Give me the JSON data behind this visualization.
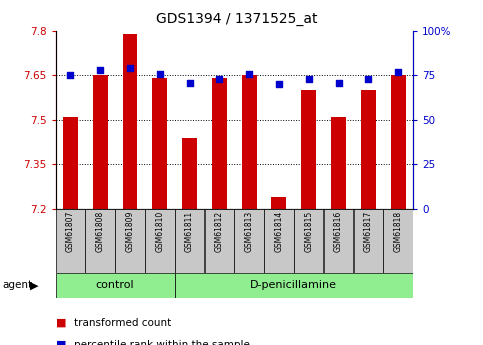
{
  "title": "GDS1394 / 1371525_at",
  "samples": [
    "GSM61807",
    "GSM61808",
    "GSM61809",
    "GSM61810",
    "GSM61811",
    "GSM61812",
    "GSM61813",
    "GSM61814",
    "GSM61815",
    "GSM61816",
    "GSM61817",
    "GSM61818"
  ],
  "transformed_counts": [
    7.51,
    7.65,
    7.79,
    7.64,
    7.44,
    7.64,
    7.65,
    7.24,
    7.6,
    7.51,
    7.6,
    7.65
  ],
  "percentile_ranks": [
    75,
    78,
    79,
    76,
    71,
    73,
    76,
    70,
    73,
    71,
    73,
    77
  ],
  "control_indices": [
    0,
    1,
    2,
    3
  ],
  "treatment_indices": [
    4,
    5,
    6,
    7,
    8,
    9,
    10,
    11
  ],
  "y_min": 7.2,
  "y_max": 7.8,
  "y_ticks": [
    7.2,
    7.35,
    7.5,
    7.65,
    7.8
  ],
  "y_tick_labels": [
    "7.2",
    "7.35",
    "7.5",
    "7.65",
    "7.8"
  ],
  "right_y_ticks": [
    0,
    25,
    50,
    75,
    100
  ],
  "right_y_tick_labels": [
    "0",
    "25",
    "50",
    "75",
    "100%"
  ],
  "bar_color": "#CC0000",
  "percentile_color": "#0000CC",
  "bar_bottom": 7.2,
  "control_bg": "#90EE90",
  "treatment_bg": "#90EE90",
  "tick_label_bg": "#C8C8C8",
  "agent_label": "agent",
  "control_label": "control",
  "treatment_label": "D-penicillamine",
  "legend_bar_label": "transformed count",
  "legend_percentile_label": "percentile rank within the sample",
  "title_fontsize": 10,
  "axis_fontsize": 7.5,
  "sample_fontsize": 5.5,
  "group_fontsize": 8,
  "legend_fontsize": 7.5
}
